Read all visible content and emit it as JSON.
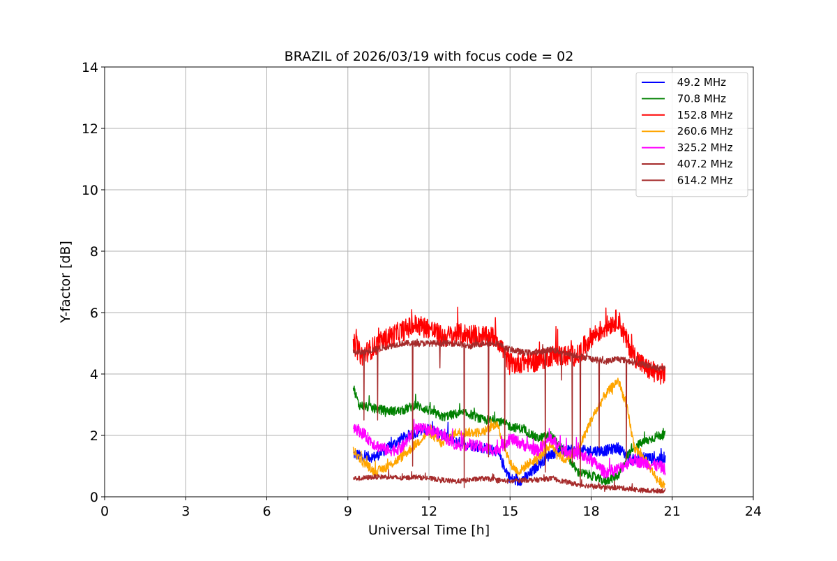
{
  "chart_data": {
    "type": "line",
    "title": "BRAZIL of 2026/03/19 with focus code = 02",
    "xlabel": "Universal Time [h]",
    "ylabel": "Y-factor [dB]",
    "xlim": [
      0,
      24
    ],
    "ylim": [
      0,
      14
    ],
    "xticks": [
      0,
      3,
      6,
      9,
      12,
      15,
      18,
      21,
      24
    ],
    "yticks": [
      0,
      2,
      4,
      6,
      8,
      10,
      12,
      14
    ],
    "grid": true,
    "legend_position": "top-right",
    "series": [
      {
        "name": " 49.2 MHz",
        "color": "#0000ff",
        "noise": 0.18,
        "x": [
          9.2,
          9.6,
          10.0,
          10.5,
          11.0,
          11.5,
          12.0,
          12.5,
          13.0,
          13.5,
          14.0,
          14.5,
          15.0,
          15.3,
          15.7,
          16.0,
          16.5,
          17.0,
          17.5,
          18.0,
          18.5,
          19.0,
          19.5,
          20.0,
          20.5,
          20.75
        ],
        "y": [
          1.4,
          1.3,
          1.3,
          1.6,
          1.9,
          2.1,
          2.2,
          2.0,
          1.8,
          1.7,
          1.6,
          1.5,
          0.6,
          0.5,
          0.7,
          1.0,
          1.4,
          1.5,
          1.5,
          1.5,
          1.5,
          1.6,
          1.2,
          1.3,
          1.2,
          1.3
        ]
      },
      {
        "name": " 70.8 MHz",
        "color": "#008000",
        "noise": 0.15,
        "x": [
          9.2,
          9.4,
          9.8,
          10.5,
          11.0,
          11.5,
          12.0,
          12.5,
          13.0,
          13.5,
          14.0,
          14.5,
          15.0,
          15.5,
          16.0,
          16.5,
          17.0,
          17.5,
          18.0,
          18.5,
          19.0,
          19.5,
          20.0,
          20.5,
          20.75
        ],
        "y": [
          3.6,
          3.0,
          2.9,
          2.8,
          2.8,
          3.0,
          2.8,
          2.6,
          2.7,
          2.7,
          2.5,
          2.5,
          2.3,
          2.2,
          1.9,
          2.0,
          1.5,
          0.8,
          0.7,
          0.5,
          0.7,
          1.6,
          1.8,
          2.0,
          2.0
        ]
      },
      {
        "name": " 152.8 MHz",
        "color": "#ff0000",
        "noise": 0.35,
        "x": [
          9.2,
          9.5,
          10.0,
          10.5,
          11.0,
          11.5,
          12.0,
          12.5,
          13.0,
          13.5,
          14.0,
          14.5,
          15.0,
          15.5,
          16.0,
          16.5,
          17.0,
          17.5,
          18.0,
          18.5,
          19.0,
          19.3,
          19.6,
          20.0,
          20.5,
          20.75
        ],
        "y": [
          5.0,
          4.6,
          4.9,
          5.2,
          5.4,
          5.6,
          5.5,
          5.2,
          5.3,
          5.3,
          5.2,
          5.2,
          4.3,
          4.4,
          4.4,
          4.6,
          4.6,
          4.6,
          5.2,
          5.5,
          5.8,
          5.1,
          4.6,
          4.2,
          4.0,
          4.0
        ]
      },
      {
        "name": " 260.6 MHz",
        "color": "#ffa500",
        "noise": 0.15,
        "x": [
          9.2,
          9.5,
          10.0,
          10.5,
          11.0,
          11.5,
          12.0,
          12.5,
          13.0,
          13.5,
          14.0,
          14.5,
          15.0,
          15.3,
          15.7,
          16.0,
          16.5,
          17.0,
          17.5,
          18.0,
          18.5,
          19.0,
          19.3,
          19.6,
          20.0,
          20.5,
          20.75
        ],
        "y": [
          1.5,
          1.2,
          0.8,
          1.0,
          1.3,
          1.7,
          2.1,
          1.7,
          2.1,
          2.1,
          2.1,
          2.4,
          1.1,
          0.8,
          1.1,
          1.2,
          1.7,
          1.2,
          1.5,
          2.5,
          3.3,
          3.8,
          3.0,
          1.6,
          1.2,
          0.5,
          0.4
        ]
      },
      {
        "name": " 325.2 MHz",
        "color": "#ff00ff",
        "noise": 0.2,
        "x": [
          9.2,
          9.5,
          10.0,
          10.5,
          11.0,
          11.5,
          12.0,
          12.5,
          13.0,
          13.5,
          14.0,
          14.5,
          15.0,
          15.5,
          16.0,
          16.5,
          17.0,
          17.5,
          18.0,
          18.5,
          19.0,
          19.5,
          20.0,
          20.5,
          20.75
        ],
        "y": [
          2.3,
          2.1,
          1.7,
          1.5,
          1.6,
          2.2,
          2.2,
          2.0,
          1.7,
          1.7,
          1.6,
          1.5,
          1.9,
          1.7,
          1.5,
          1.9,
          1.5,
          1.4,
          1.2,
          0.8,
          0.9,
          1.2,
          1.1,
          1.0,
          0.9
        ]
      },
      {
        "name": " 407.2 MHz",
        "color": "#a52a2a",
        "noise": 0.1,
        "x": [
          9.2,
          9.5,
          10.0,
          10.5,
          11.0,
          11.5,
          12.0,
          12.5,
          13.0,
          13.5,
          14.0,
          14.5,
          15.0,
          15.5,
          16.0,
          16.5,
          17.0,
          17.5,
          18.0,
          18.5,
          19.0,
          19.5,
          20.0,
          20.5,
          20.75
        ],
        "y": [
          4.7,
          4.7,
          4.8,
          4.9,
          5.0,
          5.0,
          5.0,
          5.0,
          5.0,
          4.9,
          5.0,
          5.0,
          4.8,
          4.7,
          4.7,
          4.8,
          4.7,
          4.6,
          4.5,
          4.4,
          4.5,
          4.4,
          4.3,
          4.2,
          4.2
        ],
        "dips": [
          [
            9.6,
            2.5
          ],
          [
            10.1,
            2.5
          ],
          [
            11.4,
            1.0
          ],
          [
            12.4,
            4.2
          ],
          [
            13.3,
            0.3
          ],
          [
            14.2,
            1.3
          ],
          [
            14.8,
            1.5
          ],
          [
            16.3,
            0.8
          ],
          [
            16.9,
            3.8
          ],
          [
            17.3,
            1.1
          ],
          [
            17.6,
            0.3
          ],
          [
            18.3,
            1.6
          ],
          [
            19.3,
            1.2
          ]
        ]
      },
      {
        "name": " 614.2 MHz",
        "color": "#a52a2a",
        "noise": 0.08,
        "x": [
          9.2,
          9.5,
          10.0,
          10.5,
          11.0,
          11.5,
          12.0,
          12.5,
          13.0,
          13.5,
          14.0,
          14.5,
          15.0,
          15.5,
          16.0,
          16.5,
          17.0,
          17.5,
          18.0,
          18.5,
          19.0,
          19.5,
          20.0,
          20.5,
          20.75
        ],
        "y": [
          0.6,
          0.6,
          0.65,
          0.65,
          0.6,
          0.65,
          0.6,
          0.55,
          0.5,
          0.55,
          0.6,
          0.55,
          0.5,
          0.55,
          0.55,
          0.6,
          0.5,
          0.4,
          0.35,
          0.3,
          0.3,
          0.25,
          0.2,
          0.2,
          0.2
        ]
      }
    ]
  }
}
